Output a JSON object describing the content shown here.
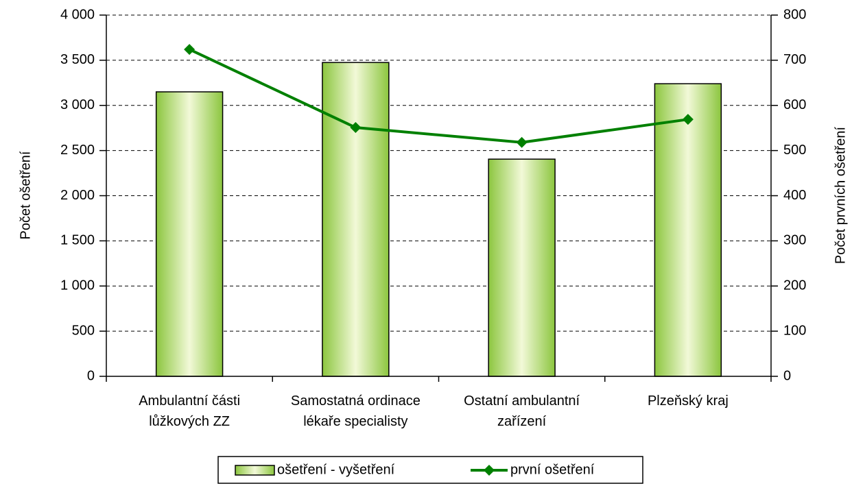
{
  "chart_data": {
    "type": "bar_line",
    "categories": [
      "Ambulantní části\nlůžkových ZZ",
      "Samostatná ordinace\nlékaře specialisty",
      "Ostatní ambulantní\nzařízení",
      "Plzeňský kraj"
    ],
    "series": [
      {
        "name": "ošetření - vyšetření",
        "type": "bar",
        "color": "#8cc63f",
        "values": [
          3150,
          3475,
          2405,
          3240
        ]
      },
      {
        "name": "první ošetření",
        "type": "line",
        "axis": "y2",
        "color": "#008000",
        "values": [
          724,
          551,
          518,
          569
        ]
      }
    ],
    "ylabel": "Počet ošetření",
    "y2label": "Počet prvních ošetření",
    "ylim": [
      0,
      4000
    ],
    "yticks": [
      0,
      500,
      {
        "value": 1000,
        "label": "1 000"
      },
      {
        "value": 1500,
        "label": "1 500"
      },
      {
        "value": 2000,
        "label": "2 000"
      },
      {
        "value": 2500,
        "label": "2 500"
      },
      {
        "value": 3000,
        "label": "3 000"
      },
      {
        "value": 3500,
        "label": "3 500"
      },
      {
        "value": 4000,
        "label": "4 000"
      }
    ],
    "y2lim": [
      0,
      800
    ],
    "y2ticks": [
      0,
      100,
      200,
      300,
      400,
      500,
      600,
      700,
      800
    ],
    "grid": true,
    "legend": "bottom"
  }
}
